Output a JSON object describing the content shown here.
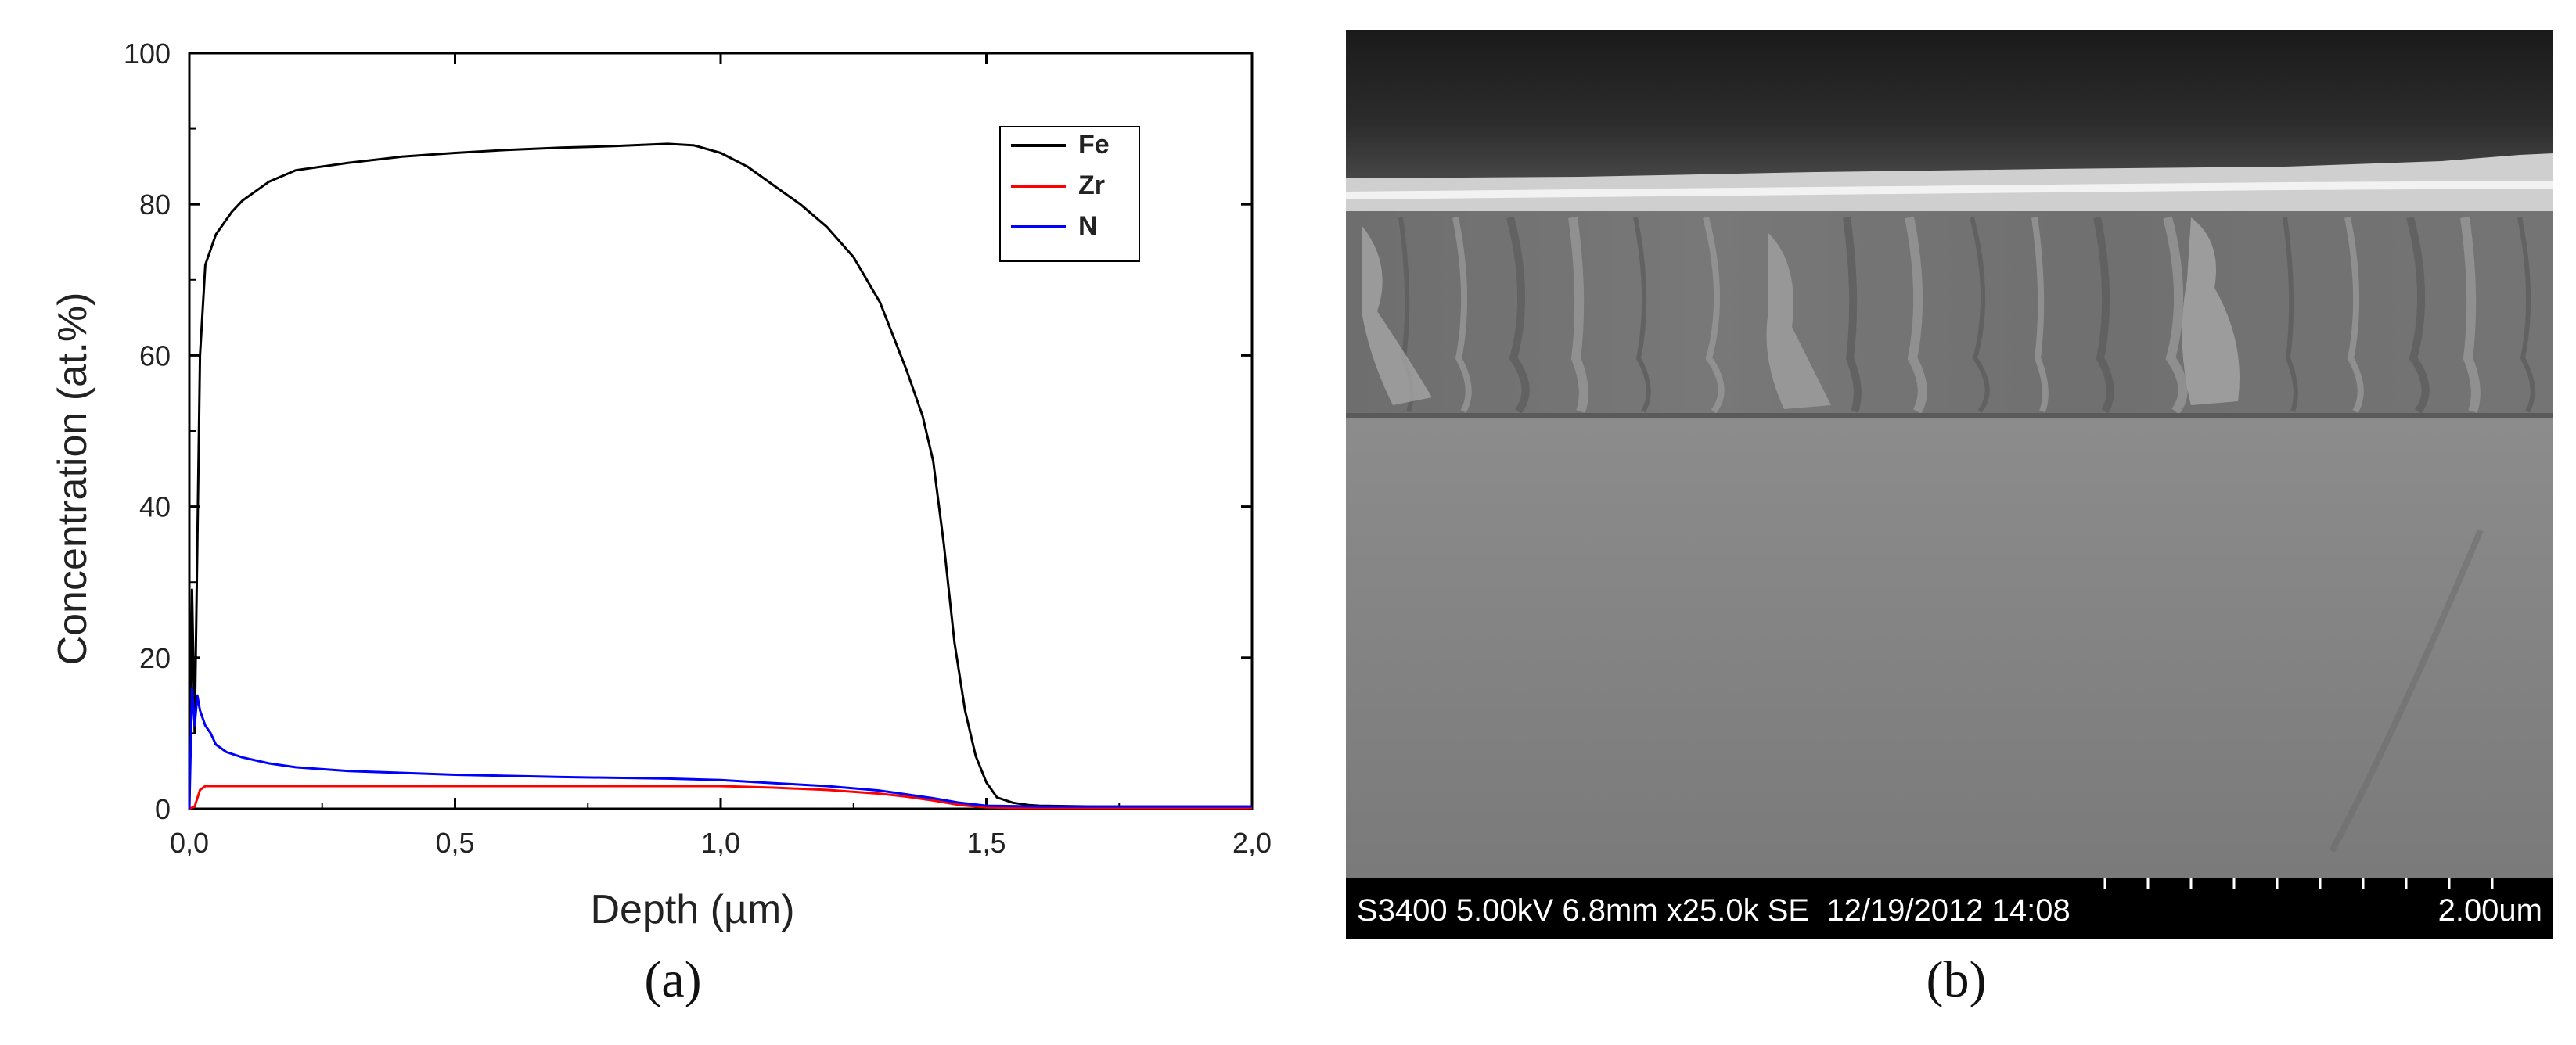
{
  "chart_data": {
    "type": "line",
    "xlabel": "Depth (µm)",
    "ylabel": "Concentration (at.%)",
    "xlim": [
      0,
      2.0
    ],
    "ylim": [
      0,
      100
    ],
    "x_ticks": [
      0,
      0.5,
      1.0,
      1.5,
      2.0
    ],
    "x_tick_labels": [
      "0,0",
      "0,5",
      "1,0",
      "1,5",
      "2,0"
    ],
    "y_ticks": [
      0,
      20,
      40,
      60,
      80,
      100
    ],
    "y_tick_labels": [
      "0",
      "20",
      "40",
      "60",
      "80",
      "100"
    ],
    "legend": "top-right",
    "series": [
      {
        "name": "Fe",
        "color": "#000000",
        "x": [
          0,
          0.005,
          0.01,
          0.015,
          0.02,
          0.03,
          0.05,
          0.08,
          0.1,
          0.15,
          0.2,
          0.3,
          0.4,
          0.5,
          0.6,
          0.7,
          0.8,
          0.9,
          0.95,
          1.0,
          1.05,
          1.1,
          1.15,
          1.2,
          1.25,
          1.3,
          1.35,
          1.38,
          1.4,
          1.42,
          1.44,
          1.46,
          1.48,
          1.5,
          1.52,
          1.55,
          1.58,
          1.6,
          1.7,
          1.8,
          1.9,
          2.0
        ],
        "y": [
          0,
          29,
          10,
          35,
          60,
          72,
          76,
          79,
          80.5,
          83,
          84.5,
          85.5,
          86.3,
          86.8,
          87.2,
          87.5,
          87.7,
          88.0,
          87.8,
          86.8,
          85.0,
          82.5,
          80.0,
          77.0,
          73.0,
          67.0,
          58.0,
          52.0,
          46.0,
          35.0,
          22.0,
          13.0,
          7.0,
          3.5,
          1.5,
          0.8,
          0.5,
          0.4,
          0.3,
          0.3,
          0.3,
          0.3
        ]
      },
      {
        "name": "Zr",
        "color": "#ff0000",
        "x": [
          0,
          0.01,
          0.02,
          0.03,
          0.05,
          0.1,
          0.2,
          0.3,
          0.5,
          0.7,
          0.9,
          1.0,
          1.1,
          1.2,
          1.3,
          1.35,
          1.4,
          1.45,
          1.5,
          1.55,
          1.6,
          1.8,
          2.0
        ],
        "y": [
          0,
          0.3,
          2.5,
          3.0,
          3.0,
          3.0,
          3.0,
          3.0,
          3.0,
          3.0,
          3.0,
          3.0,
          2.8,
          2.5,
          2.0,
          1.6,
          1.1,
          0.5,
          0.2,
          0.1,
          0.1,
          0.1,
          0.1
        ]
      },
      {
        "name": "N",
        "color": "#0000ff",
        "x": [
          0,
          0.005,
          0.01,
          0.015,
          0.02,
          0.03,
          0.04,
          0.05,
          0.07,
          0.1,
          0.15,
          0.2,
          0.3,
          0.5,
          0.7,
          0.9,
          1.0,
          1.1,
          1.2,
          1.3,
          1.4,
          1.45,
          1.5,
          1.6,
          1.8,
          2.0
        ],
        "y": [
          0,
          16,
          11,
          15,
          13,
          11,
          10,
          8.5,
          7.5,
          6.8,
          6.0,
          5.5,
          5.0,
          4.5,
          4.2,
          4.0,
          3.8,
          3.4,
          3.0,
          2.4,
          1.4,
          0.8,
          0.4,
          0.3,
          0.3,
          0.3
        ]
      }
    ]
  },
  "sem": {
    "info_text": "S3400 5.00kV 6.8mm x25.0k SE  12/19/2012 14:08",
    "scale_label": "2.00um"
  },
  "captions": {
    "a": "(a)",
    "b": "(b)"
  }
}
